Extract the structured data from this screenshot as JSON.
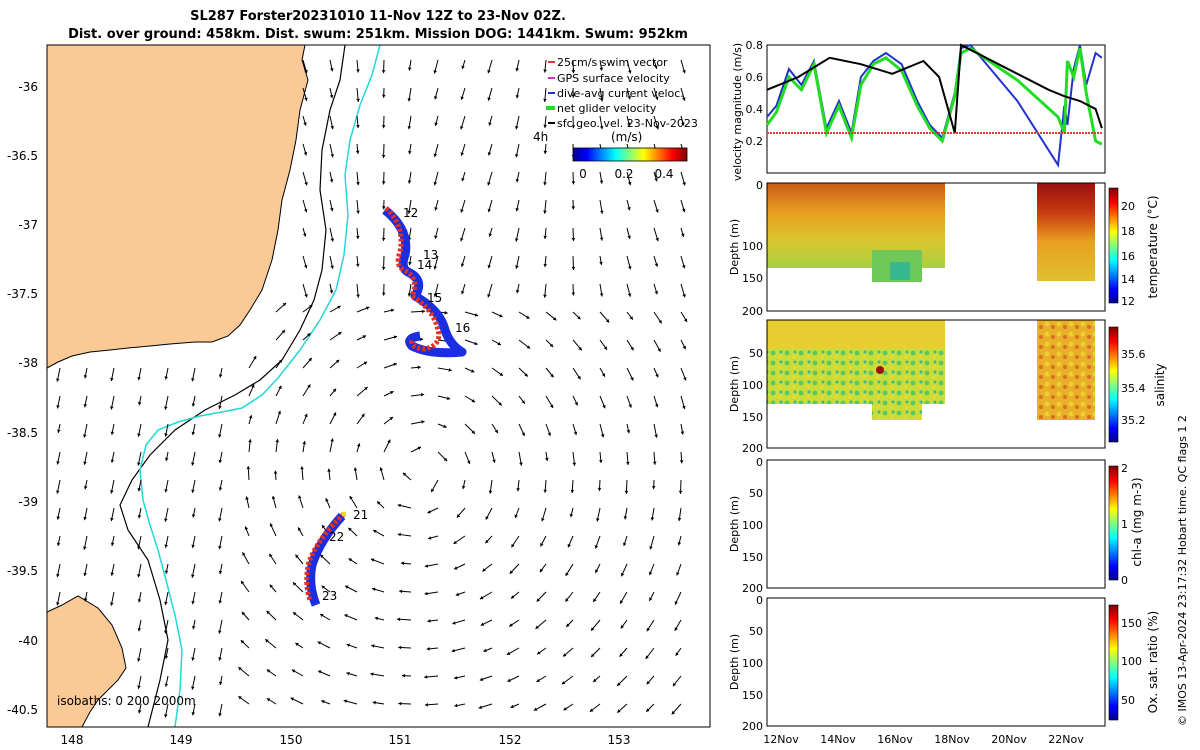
{
  "header": {
    "title_line1": "SL287 Forster20231010 11-Nov 12Z to 23-Nov 02Z.",
    "title_line2": "Dist. over ground: 458km. Dist. swum: 251km. Mission DOG: 1441km. Swum: 952km"
  },
  "map": {
    "xticks": [
      "148",
      "149",
      "150",
      "151",
      "152",
      "153"
    ],
    "yticks": [
      "-36",
      "-36.5",
      "-37",
      "-37.5",
      "-38",
      "-38.5",
      "-39",
      "-39.5",
      "-40",
      "-40.5"
    ],
    "legend": [
      {
        "label": "25cm/s swim vector",
        "color": "#e53935"
      },
      {
        "label": "GPS surface velocity",
        "color": "#cc33cc"
      },
      {
        "label": "dive-avg current veloc.",
        "color": "#2233cc"
      },
      {
        "label": "net glider velocity",
        "color": "#22dd22"
      },
      {
        "label": "sfc geo. vel. 23-Nov-2023",
        "color": "#000000"
      }
    ],
    "interval_label": "4h",
    "colorbar_label": "(m/s)",
    "colorbar_ticks": [
      "0",
      "0.2",
      "0.4"
    ],
    "day_labels": [
      "12",
      "13",
      "14",
      "15",
      "16",
      "21",
      "22",
      "23"
    ],
    "isobath_label": "isobaths: 0  200  2000m"
  },
  "panels": {
    "velocity": {
      "ylabel": "velocity magnitude (m/s)",
      "yticks": [
        "0.8",
        "0.6",
        "0.4",
        "0.2"
      ]
    },
    "temperature": {
      "ylabel": "Depth (m)",
      "cbar_label": "temperature (°C)",
      "cbar_ticks": [
        "20",
        "18",
        "16",
        "14",
        "12"
      ]
    },
    "salinity": {
      "ylabel": "Depth (m)",
      "cbar_label": "salinity",
      "cbar_ticks": [
        "35.6",
        "35.4",
        "35.2"
      ]
    },
    "chla": {
      "ylabel": "Depth (m)",
      "cbar_label": "chl-a (mg m-3)",
      "cbar_ticks": [
        "2",
        "1",
        "0"
      ]
    },
    "oxygen": {
      "ylabel": "Depth (m)",
      "cbar_label": "Ox. sat. ratio (%)",
      "cbar_ticks": [
        "150",
        "100",
        "50"
      ]
    },
    "depth_ticks": [
      "0",
      "50",
      "100",
      "150",
      "200"
    ],
    "xticks": [
      "12Nov",
      "14Nov",
      "16Nov",
      "18Nov",
      "20Nov",
      "22Nov"
    ]
  },
  "footer": {
    "credit": "© IMOS 13-Apr-2024 23:17:32 Hobart time. QC flags 1  2"
  },
  "chart_data": [
    {
      "type": "scatter",
      "title": "SL287 Forster20231010 11-Nov 12Z to 23-Nov 02Z.",
      "xlim": [
        147.8,
        153.85
      ],
      "ylim": [
        -40.6,
        -35.75
      ],
      "glider_track": {
        "lon": [
          150.85,
          151.05,
          151.0,
          150.95,
          151.1,
          151.05,
          151.15,
          151.25,
          151.4,
          151.3,
          151.2,
          151.6,
          151.1,
          150.4,
          150.35,
          150.3,
          150.25,
          150.2,
          150.25
        ],
        "lat": [
          -36.88,
          -37.1,
          -37.3,
          -37.25,
          -37.35,
          -37.5,
          -37.55,
          -37.62,
          -37.75,
          -37.85,
          -37.9,
          -37.93,
          -37.9,
          -39.08,
          -39.12,
          -39.25,
          -39.4,
          -39.55,
          -39.72
        ]
      },
      "day_labels": [
        "12",
        "13",
        "14",
        "15",
        "16",
        "21",
        "22",
        "23"
      ]
    },
    {
      "type": "line",
      "ylabel": "velocity magnitude (m/s)",
      "ylim": [
        0,
        0.8
      ],
      "x_range": [
        "11Nov",
        "23Nov"
      ],
      "series": [
        {
          "name": "dive-avg current veloc.",
          "color": "#2233cc",
          "x": [
            0,
            0.3,
            0.7,
            1.1,
            1.5,
            1.9,
            2.3,
            2.7,
            3.0,
            3.4,
            3.8,
            4.3,
            4.8,
            5.2,
            5.6,
            6.0,
            6.2,
            6.5,
            8.0,
            9.3,
            9.5,
            9.6,
            9.8,
            10.0,
            10.2,
            10.5,
            10.7
          ],
          "y": [
            0.35,
            0.42,
            0.65,
            0.55,
            0.7,
            0.28,
            0.45,
            0.25,
            0.6,
            0.7,
            0.75,
            0.68,
            0.45,
            0.3,
            0.22,
            0.5,
            0.78,
            0.8,
            0.45,
            0.05,
            0.42,
            0.3,
            0.65,
            0.8,
            0.55,
            0.75,
            0.72
          ]
        },
        {
          "name": "net glider velocity",
          "color": "#22dd22",
          "x": [
            0,
            0.3,
            0.7,
            1.1,
            1.5,
            1.9,
            2.3,
            2.7,
            3.0,
            3.4,
            3.8,
            4.3,
            4.8,
            5.2,
            5.6,
            6.0,
            6.2,
            6.5,
            8.0,
            9.3,
            9.5,
            9.6,
            9.8,
            10.0,
            10.2,
            10.5,
            10.7
          ],
          "y": [
            0.3,
            0.38,
            0.6,
            0.52,
            0.68,
            0.25,
            0.42,
            0.22,
            0.55,
            0.68,
            0.72,
            0.64,
            0.42,
            0.28,
            0.2,
            0.48,
            0.75,
            0.78,
            0.58,
            0.35,
            0.25,
            0.7,
            0.6,
            0.78,
            0.5,
            0.2,
            0.18
          ]
        },
        {
          "name": "sfc geo. vel. 23-Nov-2023",
          "color": "#000000",
          "x": [
            0,
            1,
            2,
            3,
            4,
            5,
            5.5,
            6.0,
            6.2,
            7,
            8,
            9,
            9.5,
            10,
            10.5,
            10.7
          ],
          "y": [
            0.52,
            0.6,
            0.72,
            0.68,
            0.62,
            0.7,
            0.6,
            0.25,
            0.8,
            0.72,
            0.62,
            0.52,
            0.48,
            0.45,
            0.4,
            0.28
          ]
        },
        {
          "name": "25cm/s swim vector",
          "color": "#e53935",
          "x": [
            0,
            5.7,
            9.3,
            10.7
          ],
          "y": [
            0.25,
            0.25,
            0.25,
            0.25
          ]
        }
      ]
    },
    {
      "type": "heatmap",
      "ylabel": "Depth (m)",
      "zlabel": "temperature (°C)",
      "ylim": [
        200,
        0
      ],
      "zlim": [
        12,
        21
      ]
    },
    {
      "type": "heatmap",
      "ylabel": "Depth (m)",
      "zlabel": "salinity",
      "ylim": [
        200,
        0
      ],
      "zlim": [
        35.1,
        35.7
      ]
    },
    {
      "type": "heatmap",
      "ylabel": "Depth (m)",
      "zlabel": "chl-a (mg m-3)",
      "ylim": [
        200,
        0
      ],
      "zlim": [
        0,
        2
      ]
    },
    {
      "type": "heatmap",
      "ylabel": "Depth (m)",
      "zlabel": "Ox. sat. ratio (%)",
      "ylim": [
        200,
        0
      ],
      "zlim": [
        25,
        175
      ]
    }
  ]
}
